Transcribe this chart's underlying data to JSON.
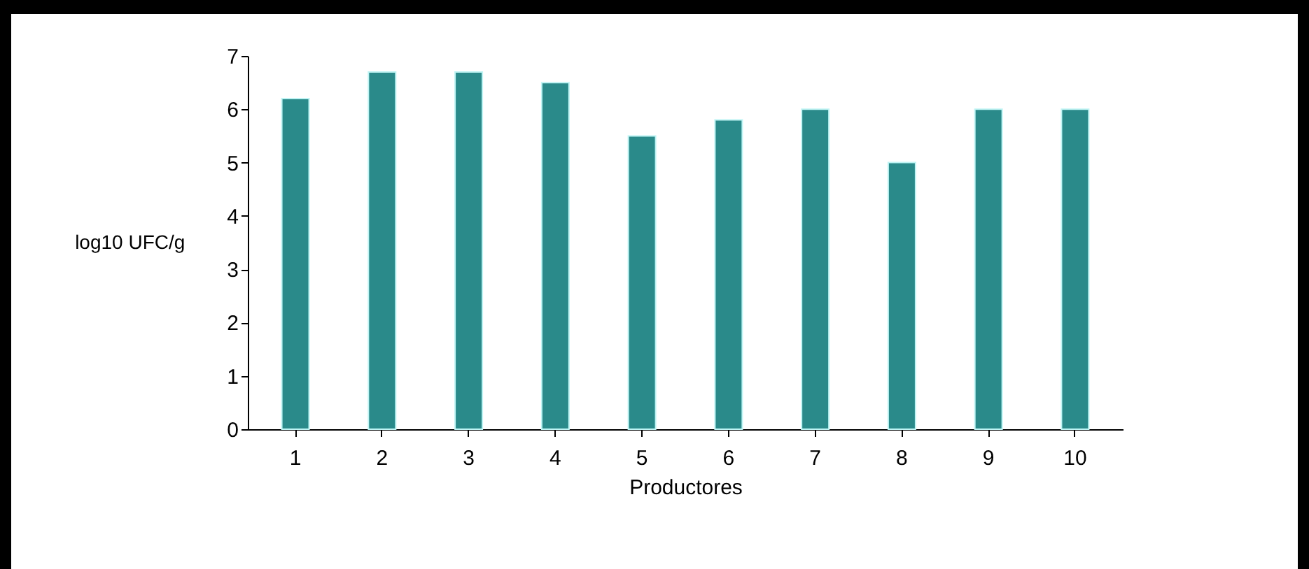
{
  "chart_data": {
    "type": "bar",
    "xlabel": "Productores",
    "ylabel": "log10 UFC/g",
    "categories": [
      "1",
      "2",
      "3",
      "4",
      "5",
      "6",
      "7",
      "8",
      "9",
      "10"
    ],
    "values": [
      6.2,
      6.7,
      6.7,
      6.5,
      5.5,
      5.8,
      6.0,
      5.0,
      6.0,
      6.0
    ],
    "color": "#2a8a8a",
    "ylim": [
      0,
      7
    ],
    "yticks": [
      0,
      1,
      2,
      3,
      4,
      5,
      6,
      7
    ],
    "grid": false,
    "legend": false
  }
}
